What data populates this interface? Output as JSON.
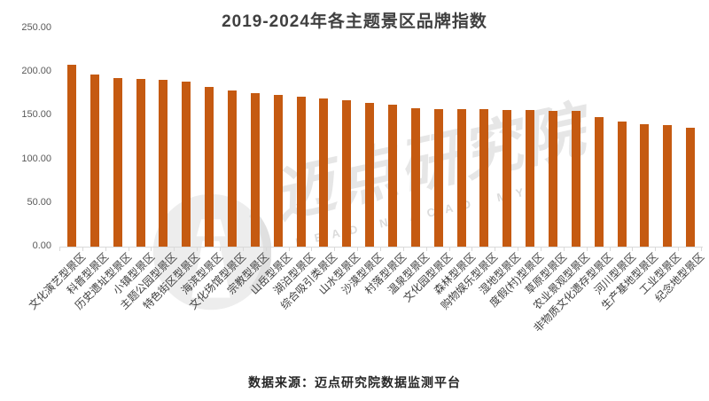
{
  "title": "2019-2024年各主题景区品牌指数",
  "source": "数据来源：迈点研究院数据监测平台",
  "watermark": {
    "cn": "迈点研究院",
    "en": "MEADIN ACADEMY"
  },
  "colors": {
    "bar": "#C55A11",
    "title_text": "#404040",
    "axis_label": "#595959",
    "category_label": "#404040",
    "axis_line": "#D9D9D9",
    "background": "#FFFFFF"
  },
  "chart_data": {
    "type": "bar",
    "title": "2019-2024年各主题景区品牌指数",
    "xlabel": "",
    "ylabel": "",
    "ylim": [
      0,
      250
    ],
    "ytick_step": 50,
    "ytick_decimals": 2,
    "grid": false,
    "legend": null,
    "categories": [
      "文化演艺型景区",
      "科普型景区",
      "历史遗址型景区",
      "小镇型景区",
      "主题公园型景区",
      "特色街区型景区",
      "海滨型景区",
      "文化场馆型景区",
      "宗教型景区",
      "山岳型景区",
      "湖泊型景区",
      "综合吸引类景区",
      "山水型景区",
      "沙漠型景区",
      "村落型景区",
      "温泉型景区",
      "文化园型景区",
      "森林型景区",
      "购物娱乐型景区",
      "湿地型景区",
      "度假(村)型景区",
      "草原型景区",
      "农业景观型景区",
      "非物质文化遗存型景区",
      "河川型景区",
      "生产基地型景区",
      "工业型景区",
      "纪念地型景区"
    ],
    "values": [
      208.7,
      197.5,
      193.5,
      192.0,
      191.5,
      188.8,
      183.0,
      178.6,
      175.8,
      173.8,
      172.0,
      169.3,
      168.0,
      164.3,
      163.0,
      158.5,
      157.8,
      157.5,
      157.2,
      156.9,
      156.6,
      155.7,
      155.0,
      148.8,
      143.5,
      140.5,
      139.2,
      136.0
    ]
  }
}
